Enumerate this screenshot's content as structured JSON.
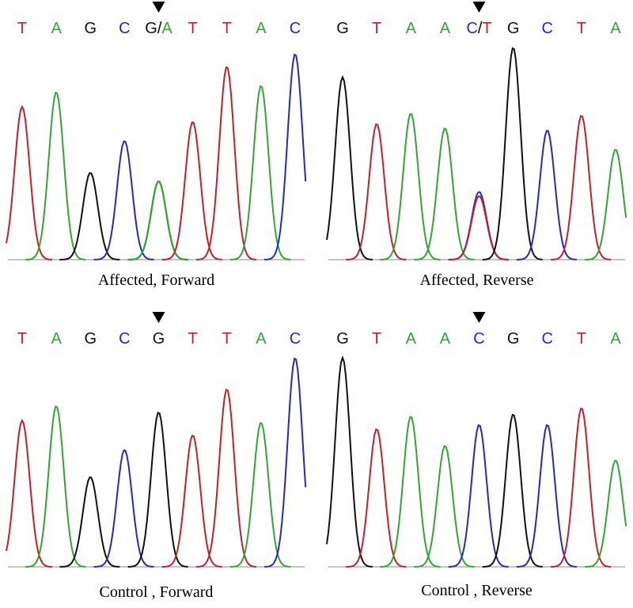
{
  "colors": {
    "A": "#2ea832",
    "C": "#2727c8",
    "G": "#111111",
    "T": "#c81e28"
  },
  "panels": [
    {
      "id": "affected-forward",
      "caption": "Affected, Forward",
      "bases": [
        "T",
        "A",
        "G",
        "C",
        "G/A",
        "T",
        "T",
        "A",
        "C"
      ],
      "marker_index": 4,
      "peaks": [
        {
          "base": "T",
          "height": 0.72
        },
        {
          "base": "A",
          "height": 0.79
        },
        {
          "base": "G",
          "height": 0.41
        },
        {
          "base": "C",
          "height": 0.56
        },
        {
          "base": "G",
          "height": 0.37
        },
        {
          "base": "A",
          "height": 0.37
        },
        {
          "base": "T",
          "height": 0.65
        },
        {
          "base": "T",
          "height": 0.91
        },
        {
          "base": "A",
          "height": 0.82
        },
        {
          "base": "C",
          "height": 0.97
        }
      ]
    },
    {
      "id": "affected-reverse",
      "caption": "Affected, Reverse",
      "bases": [
        "G",
        "T",
        "A",
        "A",
        "C/T",
        "G",
        "C",
        "T",
        "A"
      ],
      "marker_index": 4,
      "peaks": [
        {
          "base": "G",
          "height": 0.86
        },
        {
          "base": "T",
          "height": 0.64
        },
        {
          "base": "A",
          "height": 0.69
        },
        {
          "base": "A",
          "height": 0.62
        },
        {
          "base": "C",
          "height": 0.32
        },
        {
          "base": "T",
          "height": 0.3
        },
        {
          "base": "G",
          "height": 1.0
        },
        {
          "base": "C",
          "height": 0.61
        },
        {
          "base": "T",
          "height": 0.68
        },
        {
          "base": "A",
          "height": 0.52
        }
      ]
    },
    {
      "id": "control-forward",
      "caption": "Control , Forward",
      "bases": [
        "T",
        "A",
        "G",
        "C",
        "G",
        "T",
        "T",
        "A",
        "C"
      ],
      "marker_index": 4,
      "peaks": [
        {
          "base": "T",
          "height": 0.7
        },
        {
          "base": "A",
          "height": 0.77
        },
        {
          "base": "G",
          "height": 0.43
        },
        {
          "base": "C",
          "height": 0.56
        },
        {
          "base": "G",
          "height": 0.74
        },
        {
          "base": "T",
          "height": 0.63
        },
        {
          "base": "T",
          "height": 0.85
        },
        {
          "base": "A",
          "height": 0.69
        },
        {
          "base": "C",
          "height": 1.0
        }
      ]
    },
    {
      "id": "control-reverse",
      "caption": "Control , Reverse",
      "bases": [
        "G",
        "T",
        "A",
        "A",
        "C",
        "G",
        "C",
        "T",
        "A"
      ],
      "marker_index": 4,
      "peaks": [
        {
          "base": "G",
          "height": 1.0
        },
        {
          "base": "T",
          "height": 0.66
        },
        {
          "base": "A",
          "height": 0.72
        },
        {
          "base": "A",
          "height": 0.58
        },
        {
          "base": "C",
          "height": 0.68
        },
        {
          "base": "G",
          "height": 0.73
        },
        {
          "base": "C",
          "height": 0.68
        },
        {
          "base": "T",
          "height": 0.76
        },
        {
          "base": "A",
          "height": 0.51
        }
      ]
    }
  ]
}
